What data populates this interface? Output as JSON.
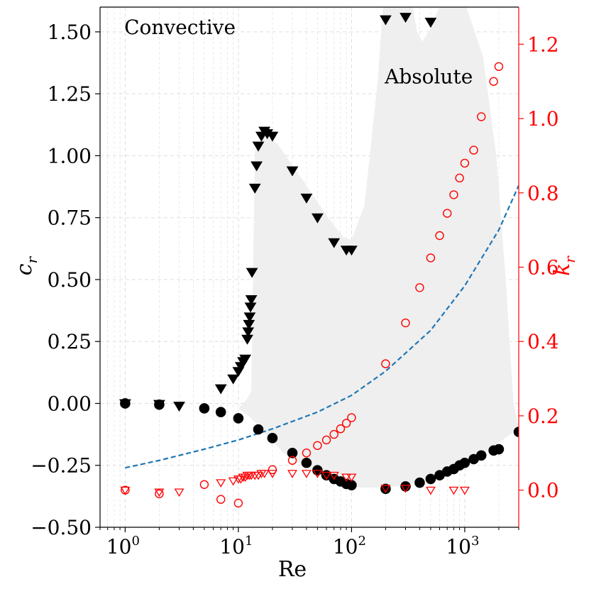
{
  "chart_data": {
    "type": "scatter",
    "xlabel": "Re",
    "ylabel_left": "c_r",
    "ylabel_right": "k_r",
    "x_scale": "log",
    "xlim": [
      0.6,
      3000
    ],
    "ylim_left": [
      -0.5,
      1.6
    ],
    "ylim_right": [
      -0.1,
      1.3
    ],
    "x_ticks": [
      {
        "value": 1,
        "base": "10",
        "exp": "0"
      },
      {
        "value": 10,
        "base": "10",
        "exp": "1"
      },
      {
        "value": 100,
        "base": "10",
        "exp": "2"
      },
      {
        "value": 1000,
        "base": "10",
        "exp": "3"
      }
    ],
    "y_left_ticks": [
      {
        "value": -0.5,
        "label": "−0.50"
      },
      {
        "value": -0.25,
        "label": "−0.25"
      },
      {
        "value": 0.0,
        "label": "0.00"
      },
      {
        "value": 0.25,
        "label": "0.25"
      },
      {
        "value": 0.5,
        "label": "0.50"
      },
      {
        "value": 0.75,
        "label": "0.75"
      },
      {
        "value": 1.0,
        "label": "1.00"
      },
      {
        "value": 1.25,
        "label": "1.25"
      },
      {
        "value": 1.5,
        "label": "1.50"
      }
    ],
    "y_right_ticks": [
      {
        "value": 0.0,
        "label": "0.0"
      },
      {
        "value": 0.2,
        "label": "0.2"
      },
      {
        "value": 0.4,
        "label": "0.4"
      },
      {
        "value": 0.6,
        "label": "0.6"
      },
      {
        "value": 0.8,
        "label": "0.8"
      },
      {
        "value": 1.0,
        "label": "1.0"
      },
      {
        "value": 1.2,
        "label": "1.2"
      }
    ],
    "grid": true,
    "annotations": [
      {
        "text": "Convective",
        "x": 0.9,
        "y": 1.52
      },
      {
        "text": "Absolute",
        "x": 180,
        "y": 1.32
      }
    ],
    "colors": {
      "primary": "#000000",
      "secondary": "#ff0000",
      "fit": "#1f77b4",
      "region": "#efefef",
      "grid": "#dddddd"
    },
    "shaded_region": {
      "label": "Absolute",
      "upper": [
        [
          10,
          -0.02
        ],
        [
          12,
          0.02
        ],
        [
          13,
          0.05
        ],
        [
          13.5,
          0.55
        ],
        [
          14,
          1.02
        ],
        [
          17,
          1.08
        ],
        [
          22,
          1.05
        ],
        [
          40,
          0.88
        ],
        [
          60,
          0.76
        ],
        [
          85,
          0.67
        ],
        [
          100,
          0.66
        ],
        [
          130,
          0.8
        ],
        [
          170,
          1.3
        ],
        [
          190,
          1.62
        ],
        [
          340,
          1.62
        ],
        [
          380,
          1.5
        ],
        [
          420,
          1.46
        ],
        [
          480,
          1.5
        ],
        [
          620,
          1.62
        ],
        [
          1000,
          1.62
        ],
        [
          1450,
          1.4
        ],
        [
          1900,
          1.0
        ],
        [
          2300,
          0.5
        ],
        [
          2700,
          0.0
        ],
        [
          3000,
          -0.1
        ]
      ],
      "lower": [
        [
          3000,
          -0.1
        ],
        [
          1500,
          -0.2
        ],
        [
          800,
          -0.27
        ],
        [
          500,
          -0.3
        ],
        [
          300,
          -0.33
        ],
        [
          200,
          -0.34
        ],
        [
          120,
          -0.34
        ],
        [
          100,
          -0.33
        ],
        [
          80,
          -0.31
        ],
        [
          60,
          -0.29
        ],
        [
          40,
          -0.26
        ],
        [
          25,
          -0.2
        ],
        [
          18,
          -0.13
        ],
        [
          13,
          -0.06
        ],
        [
          10,
          -0.02
        ]
      ]
    },
    "series": [
      {
        "name": "c_r (filled circles)",
        "axis": "left",
        "marker": "circle",
        "filled": true,
        "color": "#000000",
        "points": [
          [
            1,
            0.0
          ],
          [
            2,
            -0.005
          ],
          [
            5,
            -0.02
          ],
          [
            7,
            -0.035
          ],
          [
            10,
            -0.06
          ],
          [
            15,
            -0.105
          ],
          [
            20,
            -0.14
          ],
          [
            30,
            -0.2
          ],
          [
            40,
            -0.24
          ],
          [
            50,
            -0.27
          ],
          [
            60,
            -0.29
          ],
          [
            70,
            -0.305
          ],
          [
            80,
            -0.315
          ],
          [
            90,
            -0.325
          ],
          [
            100,
            -0.33
          ],
          [
            200,
            -0.345
          ],
          [
            300,
            -0.335
          ],
          [
            400,
            -0.32
          ],
          [
            500,
            -0.305
          ],
          [
            600,
            -0.29
          ],
          [
            700,
            -0.275
          ],
          [
            800,
            -0.265
          ],
          [
            900,
            -0.25
          ],
          [
            1000,
            -0.24
          ],
          [
            1200,
            -0.225
          ],
          [
            1400,
            -0.21
          ],
          [
            1800,
            -0.19
          ],
          [
            2000,
            -0.185
          ],
          [
            3000,
            -0.115
          ]
        ]
      },
      {
        "name": "c_r (filled triangles)",
        "axis": "left",
        "marker": "triangle-down",
        "filled": true,
        "color": "#000000",
        "points": [
          [
            1,
            0.0
          ],
          [
            2,
            -0.003
          ],
          [
            3,
            -0.01
          ],
          [
            7,
            0.06
          ],
          [
            9,
            0.1
          ],
          [
            10,
            0.13
          ],
          [
            10.5,
            0.15
          ],
          [
            11,
            0.17
          ],
          [
            11.5,
            0.18
          ],
          [
            12,
            0.26
          ],
          [
            12.2,
            0.29
          ],
          [
            12.4,
            0.32
          ],
          [
            12.6,
            0.35
          ],
          [
            12.8,
            0.39
          ],
          [
            13,
            0.42
          ],
          [
            13.2,
            0.53
          ],
          [
            14,
            0.87
          ],
          [
            14.5,
            0.96
          ],
          [
            15,
            1.04
          ],
          [
            16,
            1.08
          ],
          [
            17,
            1.1
          ],
          [
            18,
            1.09
          ],
          [
            20,
            1.08
          ],
          [
            30,
            0.94
          ],
          [
            40,
            0.83
          ],
          [
            50,
            0.75
          ],
          [
            70,
            0.65
          ],
          [
            90,
            0.62
          ],
          [
            100,
            0.62
          ],
          [
            200,
            1.55
          ],
          [
            300,
            1.56
          ],
          [
            500,
            1.54
          ]
        ]
      },
      {
        "name": "k_r (open circles)",
        "axis": "right",
        "marker": "circle",
        "filled": false,
        "color": "#ff0000",
        "points": [
          [
            1,
            0.0
          ],
          [
            2,
            -0.01
          ],
          [
            5,
            0.015
          ],
          [
            7,
            -0.025
          ],
          [
            10,
            -0.035
          ],
          [
            20,
            0.055
          ],
          [
            30,
            0.08
          ],
          [
            40,
            0.1
          ],
          [
            50,
            0.12
          ],
          [
            60,
            0.135
          ],
          [
            70,
            0.15
          ],
          [
            80,
            0.165
          ],
          [
            90,
            0.18
          ],
          [
            100,
            0.195
          ],
          [
            200,
            0.34
          ],
          [
            300,
            0.45
          ],
          [
            400,
            0.545
          ],
          [
            500,
            0.625
          ],
          [
            600,
            0.685
          ],
          [
            700,
            0.745
          ],
          [
            800,
            0.795
          ],
          [
            900,
            0.84
          ],
          [
            1000,
            0.88
          ],
          [
            1200,
            0.915
          ],
          [
            1400,
            1.005
          ],
          [
            1800,
            1.1
          ],
          [
            2000,
            1.14
          ]
        ]
      },
      {
        "name": "k_r (open triangles)",
        "axis": "right",
        "marker": "triangle-down",
        "filled": false,
        "color": "#ff0000",
        "points": [
          [
            1,
            0.0
          ],
          [
            2,
            -0.005
          ],
          [
            3,
            -0.005
          ],
          [
            7,
            0.02
          ],
          [
            9,
            0.025
          ],
          [
            10,
            0.03
          ],
          [
            10.5,
            0.03
          ],
          [
            11,
            0.035
          ],
          [
            11.5,
            0.035
          ],
          [
            12,
            0.04
          ],
          [
            12.5,
            0.04
          ],
          [
            13,
            0.04
          ],
          [
            14,
            0.04
          ],
          [
            15,
            0.04
          ],
          [
            16,
            0.045
          ],
          [
            17,
            0.045
          ],
          [
            20,
            0.045
          ],
          [
            30,
            0.045
          ],
          [
            40,
            0.045
          ],
          [
            50,
            0.045
          ],
          [
            60,
            0.04
          ],
          [
            70,
            0.04
          ],
          [
            90,
            0.035
          ],
          [
            100,
            0.035
          ],
          [
            200,
            0.005
          ],
          [
            300,
            0.005
          ],
          [
            500,
            0.0
          ],
          [
            800,
            0.0
          ],
          [
            1000,
            0.0
          ]
        ]
      },
      {
        "name": "k_r fit (dashed)",
        "axis": "right",
        "marker": "dashed-line",
        "filled": false,
        "color": "#1f77b4",
        "points": [
          [
            1,
            0.06
          ],
          [
            2,
            0.08
          ],
          [
            5,
            0.11
          ],
          [
            10,
            0.135
          ],
          [
            20,
            0.165
          ],
          [
            50,
            0.21
          ],
          [
            100,
            0.255
          ],
          [
            200,
            0.32
          ],
          [
            500,
            0.43
          ],
          [
            1000,
            0.55
          ],
          [
            2000,
            0.7
          ],
          [
            3000,
            0.82
          ]
        ]
      }
    ]
  }
}
